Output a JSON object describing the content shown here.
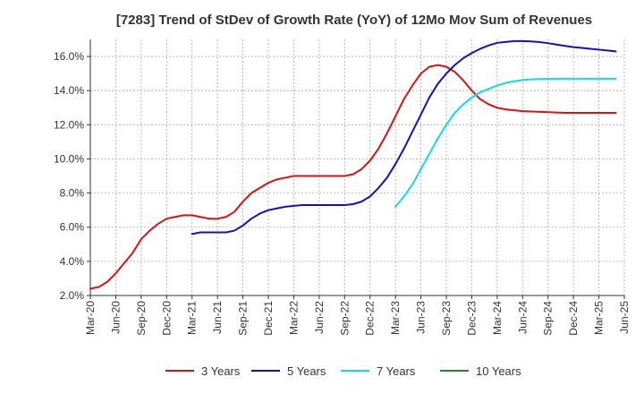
{
  "chart_data": {
    "type": "line",
    "title": "[7283]  Trend of StDev of Growth Rate (YoY) of 12Mo Mov Sum of Revenues",
    "xlabel": "",
    "ylabel": "",
    "ylim": [
      2.0,
      17.0
    ],
    "yticks": [
      "2.0%",
      "4.0%",
      "6.0%",
      "8.0%",
      "10.0%",
      "12.0%",
      "14.0%",
      "16.0%"
    ],
    "ytick_values": [
      2,
      4,
      6,
      8,
      10,
      12,
      14,
      16
    ],
    "xticks": [
      "Mar-20",
      "Jun-20",
      "Sep-20",
      "Dec-20",
      "Mar-21",
      "Jun-21",
      "Sep-21",
      "Dec-21",
      "Mar-22",
      "Jun-22",
      "Sep-22",
      "Dec-22",
      "Mar-23",
      "Jun-23",
      "Sep-23",
      "Dec-23",
      "Mar-24",
      "Jun-24",
      "Sep-24",
      "Dec-24",
      "Mar-25",
      "Jun-25"
    ],
    "x_start": "Mar-20",
    "x_unit": "months since Mar-20",
    "grid": true,
    "legend_position": "bottom",
    "series": [
      {
        "name": "3 Years",
        "color": "#dd1111",
        "x": [
          0,
          1,
          2,
          3,
          4,
          5,
          6,
          7,
          8,
          9,
          10,
          11,
          12,
          13,
          14,
          15,
          16,
          17,
          18,
          19,
          20,
          21,
          22,
          23,
          24,
          25,
          26,
          27,
          28,
          29,
          30,
          31,
          32,
          33,
          34,
          35,
          36,
          37,
          38,
          39,
          40,
          41,
          42,
          43,
          44,
          45,
          46,
          47,
          48,
          49,
          50,
          51,
          52,
          53,
          54,
          55,
          56,
          57,
          58,
          59,
          60,
          61,
          62
        ],
        "values": [
          2.4,
          2.5,
          2.8,
          3.3,
          3.9,
          4.5,
          5.3,
          5.8,
          6.2,
          6.5,
          6.6,
          6.7,
          6.7,
          6.6,
          6.5,
          6.5,
          6.6,
          6.9,
          7.5,
          8.0,
          8.3,
          8.6,
          8.8,
          8.9,
          9.0,
          9.0,
          9.0,
          9.0,
          9.0,
          9.0,
          9.0,
          9.1,
          9.4,
          9.9,
          10.6,
          11.5,
          12.5,
          13.5,
          14.3,
          15.0,
          15.4,
          15.5,
          15.4,
          15.1,
          14.6,
          14.0,
          13.5,
          13.2,
          13.0,
          12.9,
          12.85,
          12.8,
          12.78,
          12.76,
          12.74,
          12.72,
          12.7,
          12.7,
          12.7,
          12.7,
          12.7,
          12.7,
          12.7
        ]
      },
      {
        "name": "5 Years",
        "color": "#1111cc",
        "x": [
          12,
          13,
          14,
          15,
          16,
          17,
          18,
          19,
          20,
          21,
          22,
          23,
          24,
          25,
          26,
          27,
          28,
          29,
          30,
          31,
          32,
          33,
          34,
          35,
          36,
          37,
          38,
          39,
          40,
          41,
          42,
          43,
          44,
          45,
          46,
          47,
          48,
          49,
          50,
          51,
          52,
          53,
          54,
          55,
          56,
          57,
          58,
          59,
          60,
          61,
          62
        ],
        "values": [
          5.6,
          5.7,
          5.7,
          5.7,
          5.7,
          5.8,
          6.1,
          6.5,
          6.8,
          7.0,
          7.1,
          7.2,
          7.25,
          7.3,
          7.3,
          7.3,
          7.3,
          7.3,
          7.3,
          7.35,
          7.5,
          7.8,
          8.3,
          8.9,
          9.7,
          10.6,
          11.6,
          12.6,
          13.6,
          14.4,
          15.0,
          15.5,
          15.9,
          16.2,
          16.45,
          16.65,
          16.8,
          16.85,
          16.9,
          16.9,
          16.88,
          16.84,
          16.78,
          16.7,
          16.62,
          16.55,
          16.5,
          16.45,
          16.4,
          16.35,
          16.3
        ]
      },
      {
        "name": "7 Years",
        "color": "#11dddd",
        "x": [
          36,
          37,
          38,
          39,
          40,
          41,
          42,
          43,
          44,
          45,
          46,
          47,
          48,
          49,
          50,
          51,
          52,
          53,
          54,
          55,
          56,
          57,
          58,
          59,
          60,
          61,
          62
        ],
        "values": [
          7.2,
          7.8,
          8.5,
          9.4,
          10.3,
          11.2,
          12.0,
          12.7,
          13.2,
          13.6,
          13.9,
          14.1,
          14.3,
          14.45,
          14.55,
          14.62,
          14.66,
          14.68,
          14.69,
          14.7,
          14.7,
          14.7,
          14.7,
          14.7,
          14.7,
          14.7,
          14.7
        ]
      },
      {
        "name": "10 Years",
        "color": "#228822",
        "x": [],
        "values": []
      }
    ]
  }
}
